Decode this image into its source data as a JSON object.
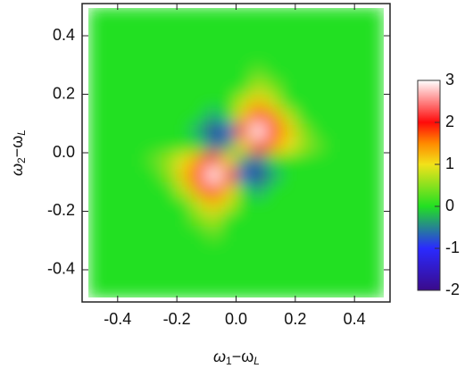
{
  "chart_data": {
    "type": "heatmap",
    "x": [
      -0.475,
      -0.425,
      -0.375,
      -0.325,
      -0.275,
      -0.225,
      -0.175,
      -0.125,
      -0.075,
      -0.025,
      0.025,
      0.075,
      0.125,
      0.175,
      0.225,
      0.275,
      0.325,
      0.375,
      0.425,
      0.475
    ],
    "y": [
      -0.475,
      -0.425,
      -0.375,
      -0.325,
      -0.275,
      -0.225,
      -0.175,
      -0.125,
      -0.075,
      -0.025,
      0.025,
      0.075,
      0.125,
      0.175,
      0.225,
      0.275,
      0.325,
      0.375,
      0.425,
      0.475
    ],
    "z": [
      [
        0,
        0,
        0,
        0,
        0,
        0,
        0,
        0,
        0,
        0,
        0,
        0,
        0,
        0,
        0,
        0,
        0,
        0,
        0,
        0
      ],
      [
        0,
        0,
        0,
        0,
        0,
        0,
        0,
        0,
        0,
        0,
        0,
        0,
        0,
        0,
        0,
        0,
        0,
        0,
        0,
        0
      ],
      [
        0,
        0,
        0,
        0,
        0,
        0,
        0,
        0,
        0,
        0,
        0,
        0,
        0,
        0,
        0,
        0,
        0,
        0,
        0,
        0
      ],
      [
        0,
        0,
        0,
        0,
        0,
        0,
        0,
        0,
        0,
        0,
        0,
        0,
        0,
        0,
        0,
        0,
        0,
        0,
        0,
        0
      ],
      [
        0,
        0,
        0,
        0,
        0,
        0,
        0,
        0,
        0.3,
        0,
        0,
        0,
        0,
        0,
        0,
        0,
        0,
        0,
        0,
        0
      ],
      [
        0,
        0,
        0,
        0,
        0,
        0,
        0,
        0.4,
        0.7,
        0,
        0,
        0,
        0,
        0,
        0,
        0,
        0,
        0,
        0,
        0
      ],
      [
        0,
        0,
        0,
        0,
        0,
        0,
        0,
        0.8,
        1.2,
        0.8,
        0,
        0,
        0,
        0,
        0,
        0,
        0,
        0,
        0,
        0
      ],
      [
        0,
        0,
        0,
        0,
        0,
        0,
        0.8,
        1.5,
        2,
        1.2,
        0,
        -0.4,
        0,
        0,
        0,
        0,
        0,
        0,
        0,
        0
      ],
      [
        0,
        0,
        0,
        0,
        0,
        0.5,
        1.2,
        2,
        3,
        2,
        -0.8,
        -1.8,
        -0.4,
        0,
        0,
        0,
        0,
        0,
        0,
        0
      ],
      [
        0,
        0,
        0,
        0,
        0.3,
        0.6,
        1,
        1.5,
        2,
        1,
        -0.3,
        -0.6,
        0,
        0,
        0,
        0,
        0,
        0,
        0,
        0
      ],
      [
        0,
        0,
        0,
        0,
        0,
        0,
        0,
        0,
        -0.6,
        -0.3,
        1,
        2,
        1.5,
        1,
        0.6,
        0.3,
        0,
        0,
        0,
        0
      ],
      [
        0,
        0,
        0,
        0,
        0,
        0,
        0,
        -0.4,
        -1.8,
        -0.8,
        2,
        3,
        2,
        1.2,
        0.5,
        0,
        0,
        0,
        0,
        0
      ],
      [
        0,
        0,
        0,
        0,
        0,
        0,
        0,
        0,
        -0.4,
        0,
        1.2,
        2,
        1.5,
        0.8,
        0,
        0,
        0,
        0,
        0,
        0
      ],
      [
        0,
        0,
        0,
        0,
        0,
        0,
        0,
        0,
        0,
        0,
        0.8,
        1.2,
        0.8,
        0,
        0,
        0,
        0,
        0,
        0,
        0
      ],
      [
        0,
        0,
        0,
        0,
        0,
        0,
        0,
        0,
        0,
        0,
        0,
        0.7,
        0.4,
        0,
        0,
        0,
        0,
        0,
        0,
        0
      ],
      [
        0,
        0,
        0,
        0,
        0,
        0,
        0,
        0,
        0,
        0,
        0,
        0.3,
        0,
        0,
        0,
        0,
        0,
        0,
        0,
        0
      ],
      [
        0,
        0,
        0,
        0,
        0,
        0,
        0,
        0,
        0,
        0,
        0,
        0,
        0,
        0,
        0,
        0,
        0,
        0,
        0,
        0
      ],
      [
        0,
        0,
        0,
        0,
        0,
        0,
        0,
        0,
        0,
        0,
        0,
        0,
        0,
        0,
        0,
        0,
        0,
        0,
        0,
        0
      ],
      [
        0,
        0,
        0,
        0,
        0,
        0,
        0,
        0,
        0,
        0,
        0,
        0,
        0,
        0,
        0,
        0,
        0,
        0,
        0,
        0
      ],
      [
        0,
        0,
        0,
        0,
        0,
        0,
        0,
        0,
        0,
        0,
        0,
        0,
        0,
        0,
        0,
        0,
        0,
        0,
        0,
        0
      ]
    ],
    "xlim": [
      -0.52,
      0.52
    ],
    "ylim": [
      -0.51,
      0.51
    ],
    "xticks": [
      -0.4,
      -0.2,
      {
        "value": 0,
        "label": "0.0"
      },
      0.2,
      0.4
    ],
    "yticks": [
      -0.4,
      -0.2,
      {
        "value": 0,
        "label": "0.0"
      },
      0.2,
      0.4
    ],
    "xlabel": [
      "ω",
      "1",
      "−ω",
      "L"
    ],
    "ylabel": [
      "ω",
      "2",
      "−ω",
      "L"
    ],
    "colorscale": [
      [
        -2,
        "#3a0a8a"
      ],
      [
        -1,
        "#2a2aff"
      ],
      [
        0,
        "#22e022"
      ],
      [
        1,
        "#f2e21a"
      ],
      [
        1.5,
        "#ff8a00"
      ],
      [
        2,
        "#ff0a0a"
      ],
      [
        3,
        "#ffffff"
      ]
    ],
    "clim": [
      -2,
      3
    ],
    "cticks": [
      -2,
      -1,
      0,
      1,
      2,
      3
    ]
  }
}
